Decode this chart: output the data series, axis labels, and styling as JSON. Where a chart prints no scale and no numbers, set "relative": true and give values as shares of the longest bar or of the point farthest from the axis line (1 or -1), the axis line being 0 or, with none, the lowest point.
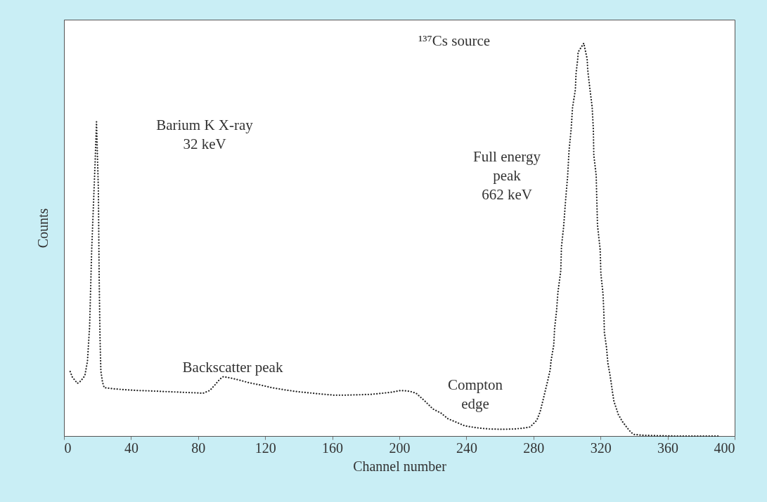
{
  "chart_data": {
    "type": "line",
    "relative": true,
    "xlabel": "Channel number",
    "ylabel": "Counts",
    "annotations": [
      "¹³⁷Cs source",
      "Barium K X-ray\n32 keV",
      "Full energy\npeak\n662 keV",
      "Backscatter peak",
      "Compton\nedge"
    ],
    "xlim": [
      0,
      400
    ],
    "xticks": [
      0,
      40,
      80,
      120,
      160,
      200,
      240,
      280,
      320,
      360,
      400
    ],
    "tick_labels": "x",
    "grid": false,
    "line_style": "dotted",
    "series": [
      {
        "color": "#222222",
        "x": [
          3.7,
          5,
          8,
          10,
          12.4,
          14,
          15.3,
          16.5,
          18.6,
          19.4,
          20.5,
          21,
          21.5,
          22,
          23,
          24,
          30,
          36,
          43,
          50,
          56,
          61,
          67,
          72,
          78,
          83,
          87,
          90,
          93,
          95,
          99,
          104,
          110,
          117,
          124,
          131,
          139,
          146,
          153,
          161,
          168,
          176,
          183,
          190,
          196,
          201,
          206,
          210,
          215,
          220,
          225,
          229,
          234,
          239,
          246,
          253,
          261,
          269,
          274,
          278,
          282,
          284,
          285.5,
          287.2,
          288.4,
          290,
          290.5,
          292.1,
          292.6,
          293.8,
          294.6,
          296.3,
          296.7,
          298,
          299.2,
          300.4,
          301.2,
          302.5,
          303.3,
          305,
          305.4,
          306.5,
          306.6,
          310,
          312,
          312.4,
          313.6,
          315,
          315.7,
          316,
          317.4,
          317.8,
          318.2,
          319.8,
          320.2,
          321.5,
          322,
          322.3,
          323.6,
          324.4,
          325.6,
          326.4,
          327.3,
          328,
          330,
          330.6,
          333,
          335.5,
          338,
          340,
          345,
          352,
          363,
          375,
          390
        ],
        "values": [
          0.164,
          0.15,
          0.134,
          0.14,
          0.153,
          0.19,
          0.28,
          0.47,
          0.7,
          0.8,
          0.63,
          0.4,
          0.25,
          0.165,
          0.137,
          0.123,
          0.12,
          0.118,
          0.116,
          0.115,
          0.114,
          0.113,
          0.112,
          0.111,
          0.11,
          0.109,
          0.116,
          0.13,
          0.145,
          0.151,
          0.148,
          0.143,
          0.136,
          0.13,
          0.123,
          0.118,
          0.113,
          0.11,
          0.107,
          0.104,
          0.104,
          0.105,
          0.106,
          0.109,
          0.112,
          0.116,
          0.114,
          0.109,
          0.09,
          0.069,
          0.058,
          0.044,
          0.035,
          0.026,
          0.021,
          0.018,
          0.017,
          0.018,
          0.02,
          0.023,
          0.04,
          0.062,
          0.088,
          0.118,
          0.139,
          0.169,
          0.192,
          0.231,
          0.273,
          0.32,
          0.366,
          0.421,
          0.482,
          0.533,
          0.602,
          0.662,
          0.725,
          0.782,
          0.836,
          0.882,
          0.923,
          0.963,
          0.977,
          1.0,
          0.961,
          0.931,
          0.886,
          0.838,
          0.783,
          0.715,
          0.664,
          0.599,
          0.537,
          0.474,
          0.414,
          0.361,
          0.312,
          0.264,
          0.224,
          0.185,
          0.157,
          0.134,
          0.107,
          0.088,
          0.063,
          0.055,
          0.037,
          0.023,
          0.01,
          0.004,
          0.002,
          0.001,
          0.0,
          0.0,
          0.0
        ]
      }
    ]
  }
}
